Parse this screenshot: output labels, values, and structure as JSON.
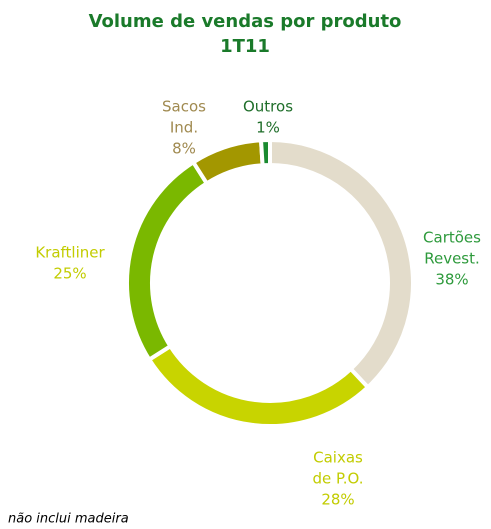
{
  "chart_data": {
    "type": "donut",
    "title": "Volume de vendas por produto",
    "subtitle": "1T11",
    "categories": [
      [
        "Cartões",
        "Revest."
      ],
      [
        "Caixas",
        "de P.O."
      ],
      [
        "Kraftliner"
      ],
      [
        "Sacos",
        "Ind."
      ],
      [
        "Outros"
      ]
    ],
    "values": [
      38,
      28,
      25,
      8,
      1
    ],
    "value_labels": [
      "38%",
      "28%",
      "25%",
      "8%",
      "1%"
    ],
    "colors": [
      "#e3dccb",
      "#c8d400",
      "#7ab800",
      "#a39700",
      "#1a8a30"
    ],
    "label_colors": [
      "#2e9a3c",
      "#c2cc00",
      "#c2cc00",
      "#a08a50",
      "#1f6e2a"
    ],
    "footnote": "não inclui madeira"
  }
}
